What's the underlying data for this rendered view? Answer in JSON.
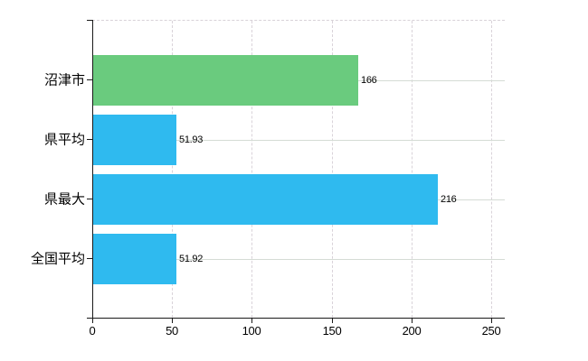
{
  "chart_data": {
    "type": "bar",
    "orientation": "horizontal",
    "title": "",
    "categories": [
      "沼津市",
      "県平均",
      "県最大",
      "全国平均"
    ],
    "values": [
      166,
      51.93,
      216,
      51.92
    ],
    "data_labels": [
      "166",
      "51.93",
      "216",
      "51.92"
    ],
    "bar_colors": [
      "#6acb7e",
      "#2fbaef",
      "#2fbaef",
      "#2fbaef"
    ],
    "highlight_color": "#6acb7e",
    "default_color": "#2fbaef",
    "x_tick_labels": [
      "0",
      "50",
      "100",
      "150",
      "200",
      "250"
    ],
    "x_tick_values": [
      0,
      50,
      100,
      150,
      200,
      250
    ],
    "xlim": [
      0,
      258.5
    ],
    "grid": true,
    "gridline_style": "vertical-dashed, horizontal-solid-at-category-centers",
    "legend_position": "none",
    "xlabel": "",
    "ylabel": ""
  },
  "colors": {
    "background": "#ffffff",
    "axis": "#1a1a1a",
    "gridline": "#d8d8d8",
    "text": "#000000"
  }
}
